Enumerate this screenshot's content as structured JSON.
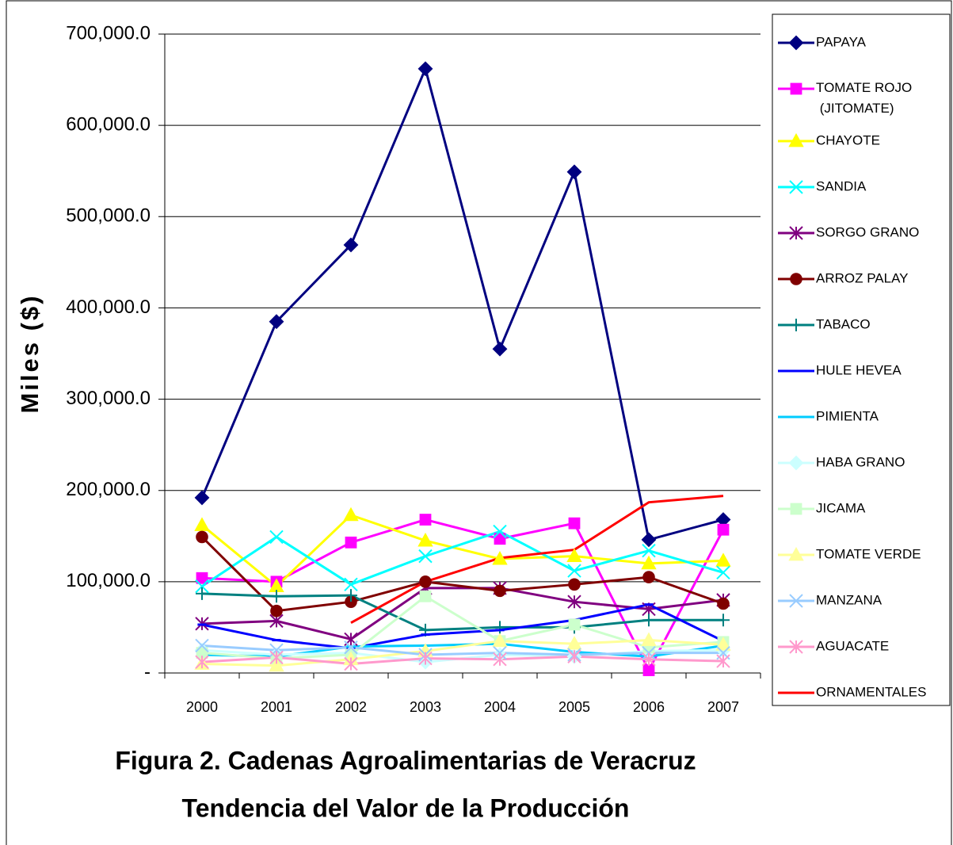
{
  "chart_data": {
    "type": "line",
    "title": [
      "Figura 2. Cadenas Agroalimentarias de Veracruz",
      "Tendencia del Valor de la Producción"
    ],
    "y_label": "Miles ($)",
    "categories": [
      "2000",
      "2001",
      "2002",
      "2003",
      "2004",
      "2005",
      "2006",
      "2007"
    ],
    "ylim": [
      0,
      700000
    ],
    "yticks": [
      {
        "value": 0,
        "label": "-"
      },
      {
        "value": 100000,
        "label": "100,000.0"
      },
      {
        "value": 200000,
        "label": "200,000.0"
      },
      {
        "value": 300000,
        "label": "300,000.0"
      },
      {
        "value": 400000,
        "label": "400,000.0"
      },
      {
        "value": 500000,
        "label": "500,000.0"
      },
      {
        "value": 600000,
        "label": "600,000.0"
      },
      {
        "value": 700000,
        "label": "700,000.0"
      }
    ],
    "grid": true,
    "legend": "right",
    "series": [
      {
        "name": "PAPAYA",
        "color": "#000080",
        "marker": "diamond",
        "values": [
          192000,
          385000,
          469000,
          662000,
          355000,
          549000,
          146000,
          168000
        ]
      },
      {
        "name": "TOMATE ROJO (JITOMATE)",
        "color": "#ff00ff",
        "marker": "square",
        "values": [
          104000,
          100000,
          143000,
          168000,
          147000,
          164000,
          3000,
          157000
        ]
      },
      {
        "name": "CHAYOTE",
        "color": "#ffff00",
        "marker": "triangle",
        "values": [
          162000,
          95000,
          173000,
          145000,
          125000,
          128000,
          120000,
          123000
        ]
      },
      {
        "name": "SANDIA",
        "color": "#00ffff",
        "marker": "x",
        "values": [
          95000,
          149000,
          97000,
          128000,
          155000,
          112000,
          134000,
          110000
        ]
      },
      {
        "name": "SORGO GRANO",
        "color": "#800080",
        "marker": "star",
        "values": [
          54000,
          57000,
          37000,
          93000,
          93000,
          78000,
          70000,
          80000
        ]
      },
      {
        "name": "ARROZ PALAY",
        "color": "#800000",
        "marker": "circle",
        "values": [
          149000,
          68000,
          78000,
          100000,
          90000,
          97000,
          105000,
          76000
        ]
      },
      {
        "name": "TABACO",
        "color": "#008080",
        "marker": "plus",
        "values": [
          87000,
          84000,
          85000,
          47000,
          50000,
          50000,
          58000,
          58000
        ]
      },
      {
        "name": "HULE HEVEA",
        "color": "#0000ff",
        "marker": "dash",
        "values": [
          53000,
          36000,
          27000,
          42000,
          47000,
          58000,
          75000,
          35000
        ]
      },
      {
        "name": "PIMIENTA",
        "color": "#00ccff",
        "marker": "dash",
        "values": [
          20000,
          18000,
          29000,
          30000,
          32000,
          23000,
          18000,
          30000
        ]
      },
      {
        "name": "HABA GRANO",
        "color": "#ccffff",
        "marker": "diamond",
        "values": [
          25000,
          20000,
          22000,
          12000,
          20000,
          18000,
          24000,
          25000
        ]
      },
      {
        "name": "JICAMA",
        "color": "#ccffcc",
        "marker": "square",
        "values": [
          22000,
          16000,
          20000,
          84000,
          35000,
          53000,
          28000,
          34000
        ]
      },
      {
        "name": "TOMATE VERDE",
        "color": "#ffff99",
        "marker": "triangle",
        "values": [
          10000,
          8000,
          15000,
          24000,
          35000,
          32000,
          36000,
          31000
        ]
      },
      {
        "name": "MANZANA",
        "color": "#99ccff",
        "marker": "x",
        "values": [
          30000,
          25000,
          28000,
          20000,
          22000,
          20000,
          22000,
          22000
        ]
      },
      {
        "name": "AGUACATE",
        "color": "#ff99cc",
        "marker": "star",
        "values": [
          12000,
          17000,
          10000,
          16000,
          15000,
          18000,
          15000,
          13000
        ]
      },
      {
        "name": "ORNAMENTALES",
        "color": "#ff0000",
        "marker": "none",
        "values": [
          null,
          null,
          55000,
          100000,
          126000,
          135000,
          187000,
          194000
        ]
      }
    ]
  }
}
